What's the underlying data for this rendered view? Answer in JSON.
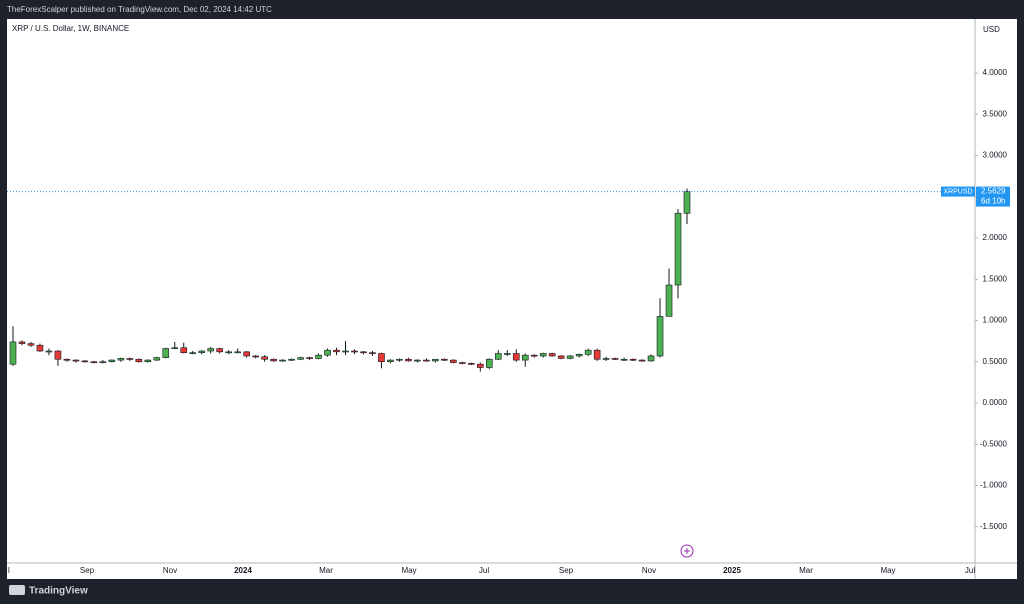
{
  "header": {
    "text": "TheForexScalper published on TradingView.com, Dec 02, 2024 14:42 UTC"
  },
  "footer": {
    "brand": "TradingView"
  },
  "chart_data": {
    "type": "candlestick",
    "title": "XRP / U.S. Dollar, 1W, BINANCE",
    "currency": "USD",
    "up_color": "#4caf50",
    "down_color": "#e53935",
    "open": [
      0.47,
      0.74,
      0.72,
      0.7,
      0.63,
      0.63,
      0.53,
      0.52,
      0.51,
      0.5,
      0.49,
      0.5,
      0.52,
      0.54,
      0.53,
      0.5,
      0.52,
      0.55,
      0.66,
      0.67,
      0.61,
      0.61,
      0.63,
      0.66,
      0.62,
      0.62,
      0.62,
      0.57,
      0.56,
      0.53,
      0.51,
      0.52,
      0.53,
      0.55,
      0.54,
      0.58,
      0.64,
      0.62,
      0.63,
      0.62,
      0.61,
      0.6,
      0.5,
      0.52,
      0.53,
      0.51,
      0.52,
      0.51,
      0.53,
      0.52,
      0.49,
      0.48,
      0.47,
      0.43,
      0.53,
      0.6,
      0.6,
      0.52,
      0.58,
      0.57,
      0.6,
      0.57,
      0.54,
      0.57,
      0.59,
      0.64,
      0.53,
      0.54,
      0.53,
      0.53,
      0.52,
      0.51,
      0.57,
      1.05,
      1.43,
      2.3
    ],
    "high": [
      0.93,
      0.76,
      0.74,
      0.72,
      0.66,
      0.64,
      0.54,
      0.53,
      0.52,
      0.51,
      0.52,
      0.53,
      0.55,
      0.55,
      0.54,
      0.53,
      0.56,
      0.67,
      0.74,
      0.73,
      0.63,
      0.64,
      0.68,
      0.67,
      0.64,
      0.66,
      0.63,
      0.58,
      0.58,
      0.54,
      0.53,
      0.54,
      0.56,
      0.56,
      0.6,
      0.66,
      0.67,
      0.75,
      0.65,
      0.63,
      0.63,
      0.61,
      0.53,
      0.54,
      0.55,
      0.53,
      0.54,
      0.53,
      0.54,
      0.53,
      0.5,
      0.49,
      0.49,
      0.54,
      0.64,
      0.64,
      0.65,
      0.6,
      0.59,
      0.61,
      0.61,
      0.58,
      0.58,
      0.6,
      0.66,
      0.66,
      0.56,
      0.55,
      0.55,
      0.54,
      0.53,
      0.59,
      1.27,
      1.63,
      2.35,
      2.6
    ],
    "low": [
      0.45,
      0.7,
      0.68,
      0.62,
      0.58,
      0.45,
      0.5,
      0.49,
      0.49,
      0.48,
      0.48,
      0.49,
      0.5,
      0.51,
      0.49,
      0.49,
      0.51,
      0.54,
      0.65,
      0.6,
      0.59,
      0.59,
      0.6,
      0.6,
      0.59,
      0.6,
      0.55,
      0.54,
      0.5,
      0.5,
      0.5,
      0.51,
      0.52,
      0.52,
      0.53,
      0.56,
      0.58,
      0.58,
      0.59,
      0.59,
      0.57,
      0.42,
      0.48,
      0.5,
      0.5,
      0.49,
      0.5,
      0.49,
      0.51,
      0.48,
      0.47,
      0.46,
      0.38,
      0.41,
      0.52,
      0.57,
      0.5,
      0.44,
      0.55,
      0.55,
      0.56,
      0.53,
      0.53,
      0.55,
      0.57,
      0.51,
      0.51,
      0.52,
      0.51,
      0.51,
      0.5,
      0.5,
      0.55,
      1.05,
      1.27,
      2.17
    ],
    "close": [
      0.74,
      0.72,
      0.7,
      0.63,
      0.63,
      0.53,
      0.52,
      0.51,
      0.5,
      0.49,
      0.5,
      0.52,
      0.54,
      0.53,
      0.5,
      0.52,
      0.55,
      0.66,
      0.67,
      0.61,
      0.61,
      0.63,
      0.66,
      0.62,
      0.62,
      0.62,
      0.57,
      0.56,
      0.53,
      0.51,
      0.52,
      0.53,
      0.55,
      0.54,
      0.58,
      0.64,
      0.62,
      0.63,
      0.62,
      0.61,
      0.6,
      0.5,
      0.52,
      0.53,
      0.51,
      0.52,
      0.51,
      0.53,
      0.52,
      0.49,
      0.48,
      0.47,
      0.43,
      0.53,
      0.6,
      0.6,
      0.52,
      0.58,
      0.57,
      0.6,
      0.57,
      0.54,
      0.57,
      0.59,
      0.64,
      0.53,
      0.54,
      0.53,
      0.53,
      0.52,
      0.51,
      0.57,
      1.05,
      1.43,
      2.3,
      2.5629
    ],
    "ylim": [
      -1.94,
      4.655
    ],
    "yticks": [
      {
        "value": 4,
        "label": "4.0000"
      },
      {
        "value": 3.5,
        "label": "3.5000"
      },
      {
        "value": 3,
        "label": "3.0000"
      },
      {
        "value": 2.5,
        "label": "2.5000"
      },
      {
        "value": 2,
        "label": "2.0000"
      },
      {
        "value": 1.5,
        "label": "1.5000"
      },
      {
        "value": 1,
        "label": "1.0000"
      },
      {
        "value": 0.5,
        "label": "0.5000"
      },
      {
        "value": 0,
        "label": "0.0000"
      },
      {
        "value": -0.5,
        "label": "-0.5000"
      },
      {
        "value": -1,
        "label": "-1.0000"
      },
      {
        "value": -1.5,
        "label": "-1.5000"
      }
    ],
    "xtick_labels": [
      "l",
      "Sep",
      "Nov",
      "2024",
      "Mar",
      "May",
      "Jul",
      "Sep",
      "Nov",
      "2025",
      "Mar",
      "May",
      "Jul"
    ],
    "last_price": {
      "symbol": "XRPUSD",
      "price": 2.5629,
      "countdown": "6d 10h"
    }
  }
}
